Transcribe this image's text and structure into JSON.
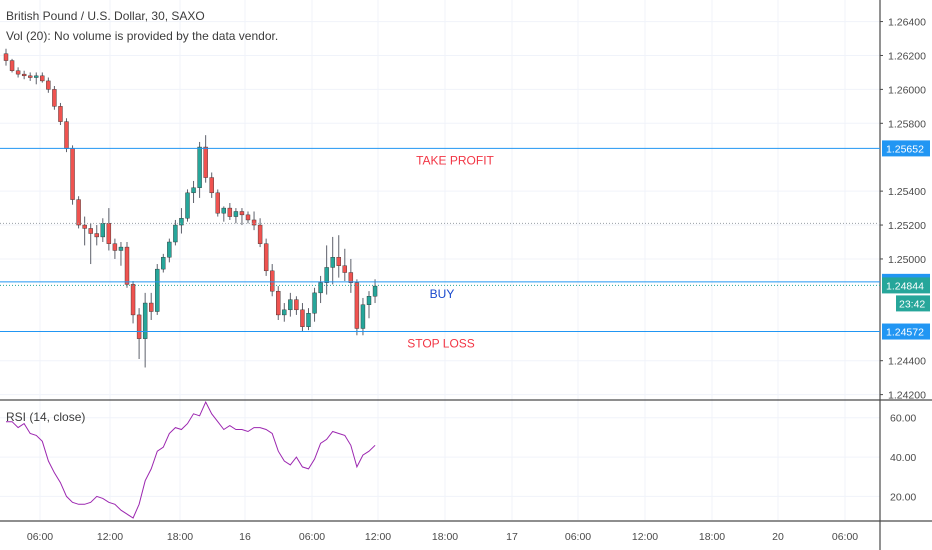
{
  "header": {
    "title": "British Pound / U.S. Dollar, 30, SAXO",
    "volume_note": "Vol (20): No volume is provided by the data vendor."
  },
  "rsi_label": "RSI (14, close)",
  "colors": {
    "up": "#26a69a",
    "down": "#ef5350",
    "level_line": "#2196f3",
    "rsi_line": "#9c27b0",
    "annotation_red": "#f23645",
    "annotation_blue": "#1848cc"
  },
  "chart_data": [
    {
      "type": "candlestick",
      "title": "British Pound / U.S. Dollar, 30, SAXO",
      "ylim": [
        1.2418,
        1.2648
      ],
      "price_ticks": [
        "1.26400",
        "1.26200",
        "1.26000",
        "1.25800",
        "1.25400",
        "1.25200",
        "1.25000",
        "1.24400",
        "1.24200"
      ],
      "time_ticks": [
        "06:00",
        "12:00",
        "18:00",
        "16",
        "06:00",
        "12:00",
        "18:00",
        "17",
        "06:00",
        "12:00",
        "18:00",
        "20",
        "06:00"
      ],
      "candles": [
        [
          1.2621,
          1.2624,
          1.2614,
          1.2617
        ],
        [
          1.2617,
          1.2618,
          1.261,
          1.2611
        ],
        [
          1.2611,
          1.2613,
          1.2607,
          1.2609
        ],
        [
          1.2609,
          1.2611,
          1.2606,
          1.2608
        ],
        [
          1.2608,
          1.261,
          1.2605,
          1.2607
        ],
        [
          1.2607,
          1.261,
          1.2603,
          1.2608
        ],
        [
          1.2608,
          1.261,
          1.2604,
          1.2605
        ],
        [
          1.2605,
          1.2607,
          1.2598,
          1.26
        ],
        [
          1.26,
          1.2602,
          1.2588,
          1.259
        ],
        [
          1.259,
          1.2592,
          1.2579,
          1.2581
        ],
        [
          1.2581,
          1.2583,
          1.2563,
          1.2565
        ],
        [
          1.2565,
          1.2567,
          1.2532,
          1.2535
        ],
        [
          1.2535,
          1.2537,
          1.2518,
          1.252
        ],
        [
          1.252,
          1.2525,
          1.2508,
          1.2518
        ],
        [
          1.2518,
          1.2521,
          1.2497,
          1.2515
        ],
        [
          1.2515,
          1.252,
          1.2508,
          1.2513
        ],
        [
          1.2513,
          1.2524,
          1.251,
          1.2521
        ],
        [
          1.2521,
          1.253,
          1.2505,
          1.2509
        ],
        [
          1.2509,
          1.2512,
          1.25,
          1.2505
        ],
        [
          1.2505,
          1.251,
          1.2496,
          1.2507
        ],
        [
          1.2507,
          1.251,
          1.2483,
          1.2485
        ],
        [
          1.2485,
          1.2487,
          1.2462,
          1.2467
        ],
        [
          1.2467,
          1.2471,
          1.2441,
          1.2453
        ],
        [
          1.2453,
          1.248,
          1.2436,
          1.2474
        ],
        [
          1.2474,
          1.248,
          1.2464,
          1.2469
        ],
        [
          1.2469,
          1.2497,
          1.2467,
          1.2494
        ],
        [
          1.2494,
          1.2503,
          1.2492,
          1.2501
        ],
        [
          1.2501,
          1.2512,
          1.2498,
          1.251
        ],
        [
          1.251,
          1.2523,
          1.2508,
          1.252
        ],
        [
          1.252,
          1.253,
          1.2515,
          1.2524
        ],
        [
          1.2524,
          1.2541,
          1.2522,
          1.2539
        ],
        [
          1.2539,
          1.2546,
          1.2533,
          1.2542
        ],
        [
          1.2542,
          1.2569,
          1.2536,
          1.2566
        ],
        [
          1.2566,
          1.2573,
          1.2545,
          1.2548
        ],
        [
          1.2548,
          1.2551,
          1.2536,
          1.2539
        ],
        [
          1.2539,
          1.2541,
          1.2525,
          1.2527
        ],
        [
          1.2527,
          1.2531,
          1.2522,
          1.253
        ],
        [
          1.253,
          1.2533,
          1.2523,
          1.2525
        ],
        [
          1.2525,
          1.253,
          1.2521,
          1.2528
        ],
        [
          1.2528,
          1.253,
          1.252,
          1.2526
        ],
        [
          1.2526,
          1.2528,
          1.2521,
          1.2523
        ],
        [
          1.2523,
          1.2528,
          1.2517,
          1.252
        ],
        [
          1.252,
          1.2524,
          1.2507,
          1.2509
        ],
        [
          1.2509,
          1.2512,
          1.249,
          1.2493
        ],
        [
          1.2493,
          1.2497,
          1.2478,
          1.2481
        ],
        [
          1.2481,
          1.2484,
          1.2464,
          1.2467
        ],
        [
          1.2467,
          1.2474,
          1.2463,
          1.247
        ],
        [
          1.247,
          1.248,
          1.2466,
          1.2476
        ],
        [
          1.2476,
          1.2478,
          1.2467,
          1.247
        ],
        [
          1.247,
          1.2474,
          1.2457,
          1.246
        ],
        [
          1.246,
          1.2471,
          1.2458,
          1.2468
        ],
        [
          1.2468,
          1.2483,
          1.2463,
          1.248
        ],
        [
          1.248,
          1.249,
          1.2474,
          1.2486
        ],
        [
          1.2486,
          1.2508,
          1.2479,
          1.2495
        ],
        [
          1.2495,
          1.2513,
          1.2485,
          1.2501
        ],
        [
          1.2501,
          1.2514,
          1.2489,
          1.2496
        ],
        [
          1.2496,
          1.2506,
          1.2487,
          1.2492
        ],
        [
          1.2492,
          1.25,
          1.248,
          1.2486
        ],
        [
          1.2486,
          1.2488,
          1.2455,
          1.2459
        ],
        [
          1.2459,
          1.2477,
          1.2455,
          1.2473
        ],
        [
          1.2473,
          1.2481,
          1.2465,
          1.2478
        ],
        [
          1.2478,
          1.2488,
          1.2474,
          1.2484
        ]
      ],
      "levels": [
        {
          "name": "take-profit",
          "value": "1.25652",
          "label": "TAKE PROFIT"
        },
        {
          "name": "buy",
          "value": "1.24865",
          "label": "BUY"
        },
        {
          "name": "stop-loss",
          "value": "1.24572",
          "label": "STOP LOSS"
        }
      ],
      "current_price": "1.24844",
      "countdown": "23:42"
    },
    {
      "type": "line",
      "title": "RSI (14, close)",
      "ylim": [
        8,
        68
      ],
      "y_ticks": [
        "60.00",
        "40.00",
        "20.00"
      ],
      "values": [
        58,
        58,
        55,
        57,
        52,
        51,
        48,
        38,
        32,
        27,
        20,
        17,
        16,
        16,
        17,
        20,
        19,
        17,
        16,
        13,
        11,
        9,
        16,
        28,
        34,
        43,
        45,
        52,
        55,
        54,
        57,
        62,
        61,
        68,
        62,
        58,
        54,
        56,
        54,
        54,
        53,
        55,
        55,
        54,
        52,
        43,
        38,
        36,
        40,
        35,
        34,
        39,
        47,
        49,
        53,
        52,
        51,
        46,
        35,
        41,
        43,
        46
      ]
    }
  ]
}
